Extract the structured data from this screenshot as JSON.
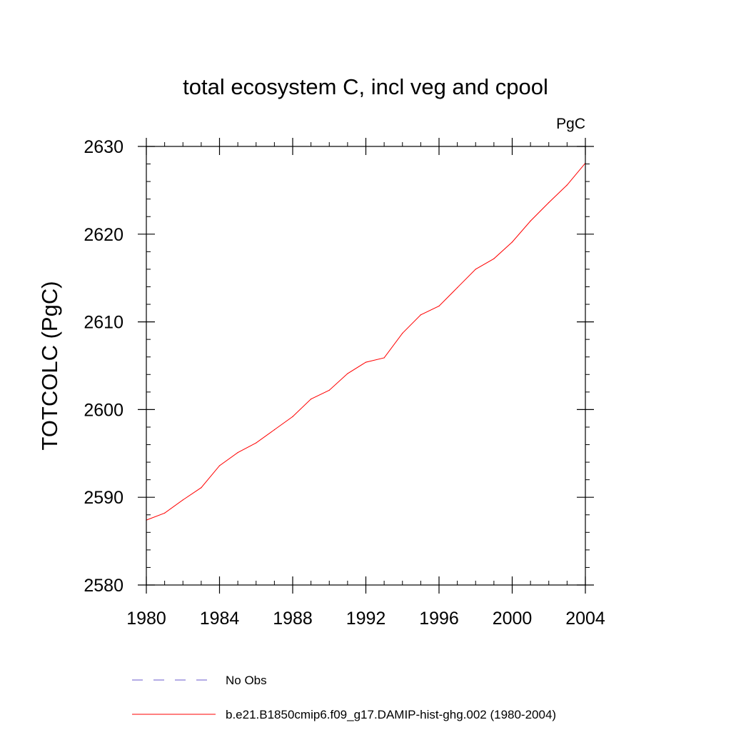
{
  "chart_data": {
    "type": "line",
    "title": "total ecosystem C, incl veg and cpool",
    "units_label": "PgC",
    "xlabel": "",
    "ylabel": "TOTCOLC  (PgC)",
    "xlim": [
      1980,
      2004
    ],
    "ylim": [
      2580,
      2630
    ],
    "x_ticks": [
      1980,
      1984,
      1988,
      1992,
      1996,
      2000,
      2004
    ],
    "y_ticks": [
      2580,
      2590,
      2600,
      2610,
      2620,
      2630
    ],
    "x_minor_step": 1,
    "y_minor_step": 2,
    "grid": false,
    "legend_position": "bottom",
    "x": [
      1980,
      1981,
      1982,
      1983,
      1984,
      1985,
      1986,
      1987,
      1988,
      1989,
      1990,
      1991,
      1992,
      1993,
      1994,
      1995,
      1996,
      1997,
      1998,
      1999,
      2000,
      2001,
      2002,
      2003,
      2004
    ],
    "series": [
      {
        "name": "b.e21.B1850cmip6.f09_g17.DAMIP-hist-ghg.002 (1980-2004)",
        "color": "#ff0000",
        "dash": "solid",
        "values": [
          2587.4,
          2588.2,
          2589.7,
          2591.1,
          2593.6,
          2595.1,
          2596.2,
          2597.7,
          2599.2,
          2601.2,
          2602.2,
          2604.1,
          2605.4,
          2605.9,
          2608.7,
          2610.8,
          2611.8,
          2613.9,
          2616.0,
          2617.2,
          2619.1,
          2621.5,
          2623.6,
          2625.6,
          2628.1
        ]
      }
    ],
    "legend": [
      {
        "label": "No Obs",
        "color": "#6a5acd",
        "dash": "dashed"
      },
      {
        "label": "b.e21.B1850cmip6.f09_g17.DAMIP-hist-ghg.002 (1980-2004)",
        "color": "#ff0000",
        "dash": "solid"
      }
    ]
  }
}
